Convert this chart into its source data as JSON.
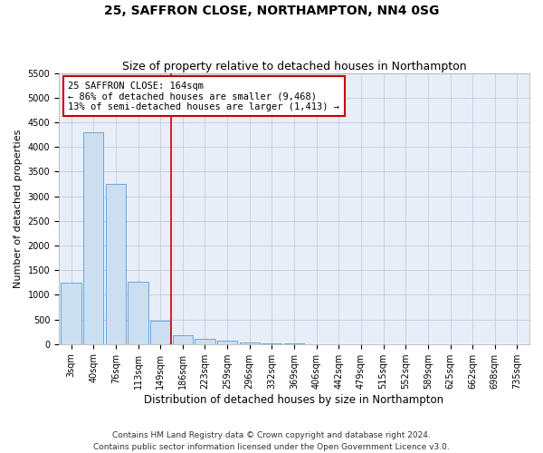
{
  "title": "25, SAFFRON CLOSE, NORTHAMPTON, NN4 0SG",
  "subtitle": "Size of property relative to detached houses in Northampton",
  "xlabel": "Distribution of detached houses by size in Northampton",
  "ylabel": "Number of detached properties",
  "footer_line1": "Contains HM Land Registry data © Crown copyright and database right 2024.",
  "footer_line2": "Contains public sector information licensed under the Open Government Licence v3.0.",
  "bar_color": "#ccdff0",
  "bar_edge_color": "#5b9bd5",
  "grid_color": "#b8c8dc",
  "background_color": "#e8eef8",
  "property_line_color": "#cc0000",
  "annotation_text": "25 SAFFRON CLOSE: 164sqm\n← 86% of detached houses are smaller (9,468)\n13% of semi-detached houses are larger (1,413) →",
  "annotation_box_color": "#ffffff",
  "annotation_box_edge_color": "#cc0000",
  "categories": [
    "3sqm",
    "40sqm",
    "76sqm",
    "113sqm",
    "149sqm",
    "186sqm",
    "223sqm",
    "259sqm",
    "296sqm",
    "332sqm",
    "369sqm",
    "406sqm",
    "442sqm",
    "479sqm",
    "515sqm",
    "552sqm",
    "589sqm",
    "625sqm",
    "662sqm",
    "698sqm",
    "735sqm"
  ],
  "bar_values": [
    1250,
    4300,
    3250,
    1270,
    480,
    185,
    100,
    65,
    40,
    5,
    5,
    0,
    0,
    0,
    0,
    0,
    0,
    0,
    0,
    0,
    0
  ],
  "ylim": [
    0,
    5500
  ],
  "yticks": [
    0,
    500,
    1000,
    1500,
    2000,
    2500,
    3000,
    3500,
    4000,
    4500,
    5000,
    5500
  ],
  "property_line_x": 4.5,
  "title_fontsize": 10,
  "subtitle_fontsize": 9,
  "xlabel_fontsize": 8.5,
  "ylabel_fontsize": 8,
  "tick_fontsize": 7,
  "annotation_fontsize": 7.5,
  "footer_fontsize": 6.5
}
